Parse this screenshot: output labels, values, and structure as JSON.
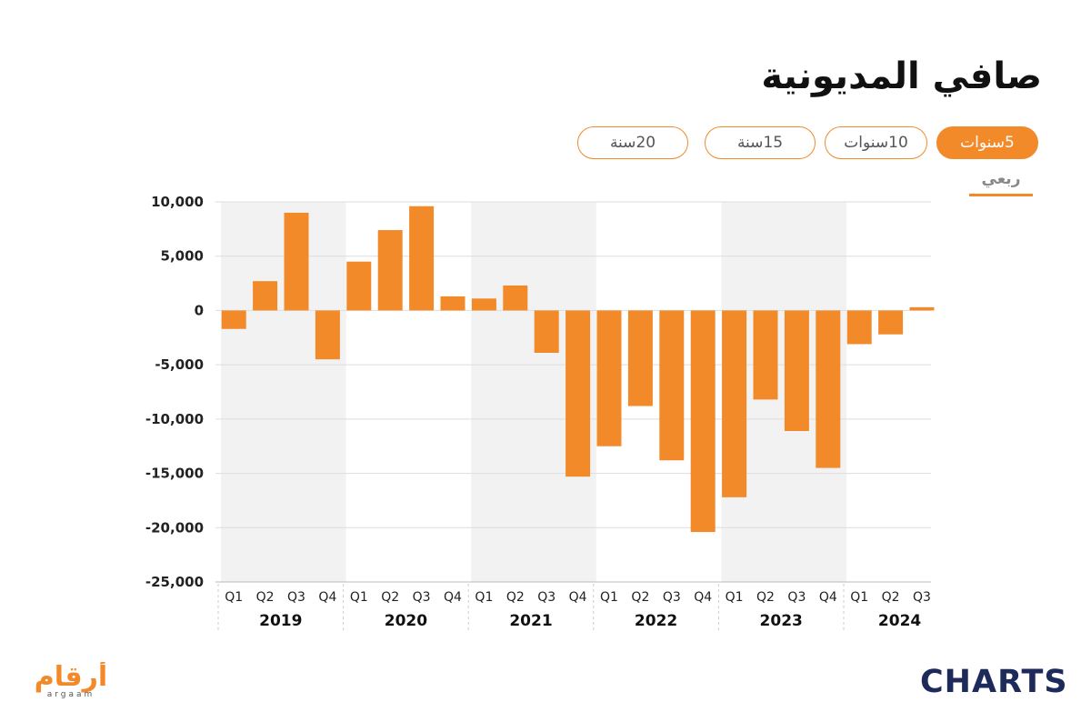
{
  "title": "صافي المديونية",
  "tabs": [
    {
      "label": "5سنوات",
      "active": true
    },
    {
      "label": "10سنوات",
      "active": false
    },
    {
      "label": "15سنة",
      "active": false
    },
    {
      "label": "20سنة",
      "active": false
    }
  ],
  "period_label": "ربعي",
  "logos": {
    "argaam": "أرقام",
    "argaam_latin": "argaam",
    "charts": "CHARTS"
  },
  "colors": {
    "bar": "#f28a2a",
    "band": "#f2f2f2",
    "grid": "#dddddd",
    "accent": "#f28a2a",
    "charts_logo": "#1e2a5a"
  },
  "chart_data": {
    "type": "bar",
    "title": "صافي المديونية",
    "ylim": [
      -25000,
      10000
    ],
    "yticks": [
      10000,
      5000,
      0,
      -5000,
      -10000,
      -15000,
      -20000,
      -25000
    ],
    "ytick_labels": [
      "10,000",
      "5,000",
      "0",
      "-5,000",
      "-10,000",
      "-15,000",
      "-20,000",
      "-25,000"
    ],
    "grid": true,
    "years": [
      {
        "year": "2019",
        "quarters": [
          "Q1",
          "Q2",
          "Q3",
          "Q4"
        ],
        "values": [
          -1700,
          2700,
          9000,
          -4500
        ]
      },
      {
        "year": "2020",
        "quarters": [
          "Q1",
          "Q2",
          "Q3",
          "Q4"
        ],
        "values": [
          4500,
          7400,
          9600,
          1300
        ]
      },
      {
        "year": "2021",
        "quarters": [
          "Q1",
          "Q2",
          "Q3",
          "Q4"
        ],
        "values": [
          1100,
          2300,
          -3900,
          -15300
        ]
      },
      {
        "year": "2022",
        "quarters": [
          "Q1",
          "Q2",
          "Q3",
          "Q4"
        ],
        "values": [
          -12500,
          -8800,
          -13800,
          -20400
        ]
      },
      {
        "year": "2023",
        "quarters": [
          "Q1",
          "Q2",
          "Q3",
          "Q4"
        ],
        "values": [
          -17200,
          -8200,
          -11100,
          -14500
        ]
      },
      {
        "year": "2024",
        "quarters": [
          "Q1",
          "Q2",
          "Q3"
        ],
        "values": [
          -3100,
          -2200,
          300
        ]
      }
    ]
  }
}
